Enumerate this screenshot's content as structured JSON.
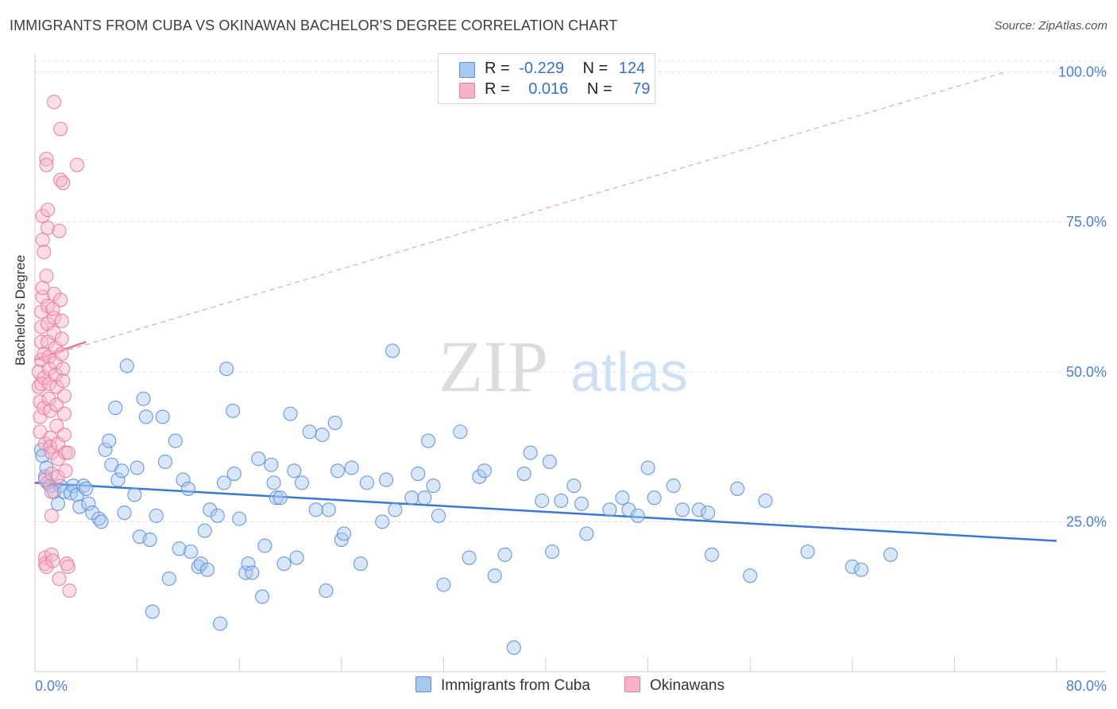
{
  "title": "IMMIGRANTS FROM CUBA VS OKINAWAN BACHELOR'S DEGREE CORRELATION CHART",
  "source": "Source: ZipAtlas.com",
  "watermark": {
    "zip": "ZIP",
    "atlas": "atlas"
  },
  "colors": {
    "blue_fill": "#a9c8f0",
    "blue_stroke": "#5a8fd6",
    "blue_line": "#3a78cf",
    "pink_fill": "#f6b3c8",
    "pink_stroke": "#e87aa0",
    "pink_line": "#e5749c",
    "axis_text": "#4a7fd0",
    "grid": "#dddddd"
  },
  "legend": {
    "rows": [
      {
        "r_label": "R =",
        "r_value": "-0.229",
        "n_label": "N =",
        "n_value": "124"
      },
      {
        "r_label": "R =",
        "r_value": "0.016",
        "n_label": "N =",
        "n_value": "79"
      }
    ]
  },
  "bottom_legend": {
    "series1": "Immigrants from Cuba",
    "series2": "Okinawans"
  },
  "chart_data": {
    "type": "scatter",
    "xlabel": "",
    "ylabel": "Bachelor's Degree",
    "xlim": [
      0,
      80
    ],
    "ylim": [
      0,
      103
    ],
    "x_ticks": [
      "0.0%",
      "80.0%"
    ],
    "y_ticks": [
      "25.0%",
      "50.0%",
      "75.0%",
      "100.0%"
    ],
    "y_tick_values": [
      25,
      50,
      75,
      100
    ],
    "grid": "horizontal dashed",
    "legend_position": "top-center",
    "series": [
      {
        "name": "Immigrants from Cuba",
        "color": "blue",
        "trend": {
          "x": [
            0,
            80
          ],
          "y": [
            31.5,
            21.8
          ],
          "style": "solid"
        },
        "points": [
          [
            0.5,
            37.0
          ],
          [
            0.6,
            36.0
          ],
          [
            0.8,
            32.5
          ],
          [
            0.9,
            34.0
          ],
          [
            1.0,
            31.5
          ],
          [
            1.2,
            31.0
          ],
          [
            1.5,
            30.0
          ],
          [
            1.8,
            28.0
          ],
          [
            2.0,
            31.0
          ],
          [
            2.3,
            30.0
          ],
          [
            2.8,
            29.8
          ],
          [
            3.0,
            31.0
          ],
          [
            3.3,
            29.5
          ],
          [
            3.5,
            27.5
          ],
          [
            3.8,
            31.0
          ],
          [
            4.0,
            30.5
          ],
          [
            4.2,
            28.0
          ],
          [
            4.5,
            26.5
          ],
          [
            5.0,
            25.5
          ],
          [
            5.2,
            25.0
          ],
          [
            5.5,
            37.0
          ],
          [
            5.8,
            38.5
          ],
          [
            6.0,
            34.5
          ],
          [
            6.3,
            44.0
          ],
          [
            6.5,
            32.0
          ],
          [
            6.8,
            33.5
          ],
          [
            7.0,
            26.5
          ],
          [
            7.2,
            51.0
          ],
          [
            7.8,
            29.5
          ],
          [
            8.0,
            34.0
          ],
          [
            8.2,
            22.5
          ],
          [
            8.5,
            45.5
          ],
          [
            8.7,
            42.5
          ],
          [
            9.0,
            22.0
          ],
          [
            9.2,
            10.0
          ],
          [
            9.5,
            26.0
          ],
          [
            10.0,
            42.5
          ],
          [
            10.2,
            35.0
          ],
          [
            10.5,
            15.5
          ],
          [
            11.0,
            38.5
          ],
          [
            11.3,
            20.5
          ],
          [
            11.6,
            32.0
          ],
          [
            12.0,
            30.5
          ],
          [
            12.2,
            20.0
          ],
          [
            12.8,
            17.5
          ],
          [
            13.0,
            18.0
          ],
          [
            13.3,
            23.5
          ],
          [
            13.5,
            17.0
          ],
          [
            13.7,
            27.0
          ],
          [
            14.3,
            26.0
          ],
          [
            14.5,
            8.0
          ],
          [
            14.8,
            31.5
          ],
          [
            15.0,
            50.5
          ],
          [
            15.5,
            43.5
          ],
          [
            15.6,
            33.0
          ],
          [
            16.0,
            25.5
          ],
          [
            16.5,
            16.5
          ],
          [
            16.7,
            18.0
          ],
          [
            17.0,
            16.5
          ],
          [
            17.5,
            35.5
          ],
          [
            17.8,
            12.5
          ],
          [
            18.0,
            21.0
          ],
          [
            18.5,
            34.5
          ],
          [
            18.7,
            31.5
          ],
          [
            18.9,
            29.0
          ],
          [
            19.2,
            29.0
          ],
          [
            19.5,
            18.0
          ],
          [
            20.0,
            43.0
          ],
          [
            20.3,
            33.5
          ],
          [
            20.5,
            19.0
          ],
          [
            20.9,
            31.5
          ],
          [
            21.5,
            40.0
          ],
          [
            22.0,
            27.0
          ],
          [
            22.5,
            39.5
          ],
          [
            22.8,
            13.5
          ],
          [
            23.0,
            27.0
          ],
          [
            23.5,
            41.5
          ],
          [
            23.7,
            33.5
          ],
          [
            24.0,
            22.0
          ],
          [
            24.2,
            23.0
          ],
          [
            24.8,
            34.0
          ],
          [
            25.5,
            18.0
          ],
          [
            26.0,
            31.5
          ],
          [
            27.2,
            25.0
          ],
          [
            27.5,
            32.0
          ],
          [
            28.0,
            53.5
          ],
          [
            28.2,
            27.0
          ],
          [
            29.5,
            29.0
          ],
          [
            30.0,
            33.0
          ],
          [
            30.5,
            29.0
          ],
          [
            30.8,
            38.5
          ],
          [
            31.2,
            31.0
          ],
          [
            31.6,
            26.0
          ],
          [
            32.0,
            14.5
          ],
          [
            33.3,
            40.0
          ],
          [
            34.0,
            19.0
          ],
          [
            34.8,
            32.5
          ],
          [
            35.2,
            33.5
          ],
          [
            36.0,
            16.0
          ],
          [
            36.8,
            19.5
          ],
          [
            37.5,
            4.0
          ],
          [
            38.3,
            33.0
          ],
          [
            38.8,
            36.5
          ],
          [
            39.7,
            28.5
          ],
          [
            40.3,
            35.0
          ],
          [
            40.5,
            20.0
          ],
          [
            41.2,
            28.5
          ],
          [
            42.2,
            31.0
          ],
          [
            42.8,
            28.0
          ],
          [
            43.2,
            23.0
          ],
          [
            45.0,
            27.0
          ],
          [
            46.0,
            29.0
          ],
          [
            46.5,
            27.0
          ],
          [
            47.2,
            26.0
          ],
          [
            48.0,
            34.0
          ],
          [
            48.5,
            29.0
          ],
          [
            50.0,
            31.0
          ],
          [
            50.7,
            27.0
          ],
          [
            52.0,
            27.0
          ],
          [
            52.7,
            26.5
          ],
          [
            53.0,
            19.5
          ],
          [
            55.0,
            30.5
          ],
          [
            56.0,
            16.0
          ],
          [
            57.2,
            28.5
          ],
          [
            60.5,
            20.0
          ],
          [
            64.0,
            17.5
          ],
          [
            64.7,
            17.0
          ],
          [
            67.0,
            19.5
          ]
        ]
      },
      {
        "name": "Okinawans",
        "color": "pink",
        "trend": {
          "x": [
            0,
            4
          ],
          "y": [
            52.0,
            55.0
          ],
          "style": "solid",
          "extended_x": [
            0,
            76
          ],
          "extended_y": [
            52.0,
            100.0
          ],
          "extended_style": "dashed"
        },
        "points": [
          [
            0.3,
            50.0
          ],
          [
            0.3,
            47.5
          ],
          [
            0.4,
            45.0
          ],
          [
            0.4,
            42.5
          ],
          [
            0.4,
            40.0
          ],
          [
            0.5,
            52.0
          ],
          [
            0.5,
            48.0
          ],
          [
            0.5,
            55.0
          ],
          [
            0.5,
            57.5
          ],
          [
            0.5,
            60.0
          ],
          [
            0.6,
            62.5
          ],
          [
            0.6,
            64.0
          ],
          [
            0.6,
            76.0
          ],
          [
            0.6,
            72.0
          ],
          [
            0.7,
            70.0
          ],
          [
            0.7,
            53.0
          ],
          [
            0.7,
            49.0
          ],
          [
            0.7,
            44.0
          ],
          [
            0.8,
            38.0
          ],
          [
            0.8,
            32.0
          ],
          [
            0.8,
            19.0
          ],
          [
            0.8,
            18.0
          ],
          [
            0.9,
            17.5
          ],
          [
            0.9,
            85.5
          ],
          [
            0.9,
            84.5
          ],
          [
            1.0,
            77.0
          ],
          [
            1.0,
            74.0
          ],
          [
            1.0,
            61.0
          ],
          [
            1.0,
            58.0
          ],
          [
            1.0,
            55.0
          ],
          [
            1.1,
            52.5
          ],
          [
            1.1,
            50.5
          ],
          [
            1.1,
            48.0
          ],
          [
            1.1,
            45.5
          ],
          [
            1.2,
            43.5
          ],
          [
            1.2,
            39.0
          ],
          [
            1.2,
            37.5
          ],
          [
            1.3,
            36.5
          ],
          [
            1.3,
            33.0
          ],
          [
            1.3,
            30.0
          ],
          [
            1.3,
            19.5
          ],
          [
            1.4,
            18.5
          ],
          [
            1.5,
            95.0
          ],
          [
            1.5,
            63.0
          ],
          [
            1.5,
            59.0
          ],
          [
            1.5,
            56.5
          ],
          [
            1.6,
            54.0
          ],
          [
            1.6,
            51.5
          ],
          [
            1.6,
            49.5
          ],
          [
            1.7,
            47.5
          ],
          [
            1.7,
            44.5
          ],
          [
            1.7,
            41.0
          ],
          [
            1.8,
            38.0
          ],
          [
            1.8,
            35.5
          ],
          [
            1.8,
            32.5
          ],
          [
            1.9,
            15.5
          ],
          [
            1.9,
            73.5
          ],
          [
            2.0,
            90.5
          ],
          [
            2.0,
            82.0
          ],
          [
            2.0,
            62.0
          ],
          [
            2.1,
            58.5
          ],
          [
            2.1,
            55.5
          ],
          [
            2.1,
            53.0
          ],
          [
            2.2,
            50.5
          ],
          [
            2.2,
            48.5
          ],
          [
            2.3,
            46.0
          ],
          [
            2.3,
            43.0
          ],
          [
            2.3,
            39.5
          ],
          [
            2.4,
            36.5
          ],
          [
            2.4,
            33.5
          ],
          [
            2.5,
            18.0
          ],
          [
            2.6,
            17.5
          ],
          [
            2.7,
            13.5
          ],
          [
            1.4,
            60.5
          ],
          [
            0.9,
            66.0
          ],
          [
            2.2,
            81.5
          ],
          [
            1.3,
            26.0
          ],
          [
            3.3,
            84.5
          ],
          [
            2.6,
            36.5
          ]
        ]
      }
    ]
  }
}
